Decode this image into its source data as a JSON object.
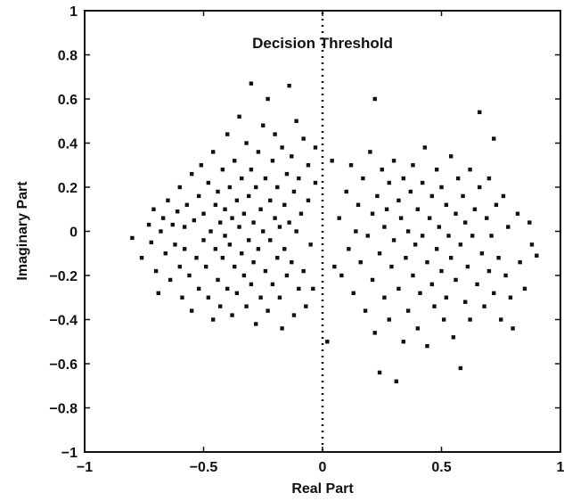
{
  "chart_data": {
    "type": "scatter",
    "xlabel": "Real Part",
    "ylabel": "Imaginary Part",
    "xlim": [
      -1,
      1
    ],
    "ylim": [
      -1,
      1
    ],
    "x_ticks": [
      -1,
      -0.5,
      0,
      0.5,
      1
    ],
    "x_tick_labels": [
      "−1",
      "−0.5",
      "0",
      "0.5",
      "1"
    ],
    "y_ticks": [
      1,
      0.8,
      0.6,
      0.4,
      0.2,
      0,
      -0.2,
      -0.4,
      -0.6,
      -0.8,
      -1
    ],
    "y_tick_labels": [
      "1",
      "0.8",
      "0.6",
      "0.4",
      "0.2",
      "0",
      "−0.2",
      "−0.4",
      "−0.6",
      "−0.8",
      "−1"
    ],
    "grid": false,
    "annotation": {
      "text": "Decision Threshold",
      "x": 0.0,
      "y": 0.83
    },
    "threshold_line": {
      "x": 0
    },
    "marker_color": "#111111",
    "points": [
      [
        -0.8,
        -0.03
      ],
      [
        -0.76,
        -0.12
      ],
      [
        -0.73,
        0.03
      ],
      [
        -0.72,
        -0.05
      ],
      [
        -0.71,
        0.1
      ],
      [
        -0.7,
        -0.18
      ],
      [
        -0.69,
        -0.28
      ],
      [
        -0.68,
        0.0
      ],
      [
        -0.67,
        0.06
      ],
      [
        -0.66,
        -0.1
      ],
      [
        -0.65,
        0.14
      ],
      [
        -0.64,
        -0.22
      ],
      [
        -0.63,
        0.03
      ],
      [
        -0.62,
        -0.06
      ],
      [
        -0.61,
        0.09
      ],
      [
        -0.6,
        -0.16
      ],
      [
        -0.6,
        0.2
      ],
      [
        -0.59,
        -0.3
      ],
      [
        -0.58,
        0.02
      ],
      [
        -0.58,
        -0.08
      ],
      [
        -0.57,
        0.12
      ],
      [
        -0.56,
        -0.2
      ],
      [
        -0.55,
        0.26
      ],
      [
        -0.55,
        -0.36
      ],
      [
        -0.54,
        0.05
      ],
      [
        -0.53,
        -0.12
      ],
      [
        -0.52,
        0.16
      ],
      [
        -0.52,
        -0.26
      ],
      [
        -0.51,
        0.3
      ],
      [
        -0.5,
        -0.04
      ],
      [
        -0.5,
        0.08
      ],
      [
        -0.49,
        -0.16
      ],
      [
        -0.48,
        0.22
      ],
      [
        -0.48,
        -0.3
      ],
      [
        -0.47,
        0.0
      ],
      [
        -0.46,
        0.36
      ],
      [
        -0.46,
        -0.4
      ],
      [
        -0.45,
        0.12
      ],
      [
        -0.45,
        -0.08
      ],
      [
        -0.44,
        0.18
      ],
      [
        -0.44,
        -0.22
      ],
      [
        -0.43,
        0.04
      ],
      [
        -0.43,
        -0.34
      ],
      [
        -0.42,
        0.28
      ],
      [
        -0.42,
        -0.12
      ],
      [
        -0.41,
        0.1
      ],
      [
        -0.41,
        -0.02
      ],
      [
        -0.4,
        0.44
      ],
      [
        -0.4,
        -0.26
      ],
      [
        -0.39,
        0.2
      ],
      [
        -0.39,
        -0.06
      ],
      [
        -0.38,
        0.06
      ],
      [
        -0.38,
        -0.38
      ],
      [
        -0.37,
        0.32
      ],
      [
        -0.37,
        -0.16
      ],
      [
        -0.36,
        0.14
      ],
      [
        -0.36,
        -0.28
      ],
      [
        -0.35,
        0.02
      ],
      [
        -0.35,
        0.52
      ],
      [
        -0.34,
        -0.1
      ],
      [
        -0.34,
        0.24
      ],
      [
        -0.33,
        -0.2
      ],
      [
        -0.33,
        0.08
      ],
      [
        -0.32,
        0.4
      ],
      [
        -0.32,
        -0.34
      ],
      [
        -0.31,
        0.16
      ],
      [
        -0.31,
        -0.04
      ],
      [
        -0.3,
        0.28
      ],
      [
        -0.3,
        -0.24
      ],
      [
        -0.3,
        0.67
      ],
      [
        -0.29,
        0.04
      ],
      [
        -0.29,
        -0.14
      ],
      [
        -0.28,
        0.2
      ],
      [
        -0.28,
        -0.42
      ],
      [
        -0.27,
        0.36
      ],
      [
        -0.27,
        -0.08
      ],
      [
        -0.26,
        0.1
      ],
      [
        -0.26,
        -0.3
      ],
      [
        -0.25,
        0.48
      ],
      [
        -0.25,
        0.0
      ],
      [
        -0.24,
        -0.18
      ],
      [
        -0.24,
        0.24
      ],
      [
        -0.23,
        0.6
      ],
      [
        -0.23,
        -0.36
      ],
      [
        -0.22,
        0.14
      ],
      [
        -0.22,
        -0.04
      ],
      [
        -0.21,
        0.32
      ],
      [
        -0.21,
        -0.24
      ],
      [
        -0.2,
        0.06
      ],
      [
        -0.2,
        0.44
      ],
      [
        -0.19,
        -0.12
      ],
      [
        -0.19,
        0.2
      ],
      [
        -0.18,
        -0.3
      ],
      [
        -0.18,
        0.02
      ],
      [
        -0.17,
        0.38
      ],
      [
        -0.17,
        -0.44
      ],
      [
        -0.16,
        0.12
      ],
      [
        -0.16,
        -0.08
      ],
      [
        -0.15,
        0.26
      ],
      [
        -0.15,
        -0.2
      ],
      [
        -0.14,
        0.66
      ],
      [
        -0.14,
        0.04
      ],
      [
        -0.13,
        0.34
      ],
      [
        -0.13,
        -0.14
      ],
      [
        -0.12,
        0.18
      ],
      [
        -0.12,
        -0.38
      ],
      [
        -0.11,
        0.5
      ],
      [
        -0.11,
        0.0
      ],
      [
        -0.1,
        -0.26
      ],
      [
        -0.1,
        0.24
      ],
      [
        -0.09,
        0.08
      ],
      [
        -0.08,
        0.42
      ],
      [
        -0.08,
        -0.18
      ],
      [
        -0.07,
        -0.34
      ],
      [
        -0.06,
        0.14
      ],
      [
        -0.06,
        0.3
      ],
      [
        -0.05,
        -0.06
      ],
      [
        -0.04,
        -0.26
      ],
      [
        -0.03,
        0.38
      ],
      [
        -0.03,
        0.22
      ],
      [
        0.02,
        -0.5
      ],
      [
        0.04,
        0.32
      ],
      [
        0.05,
        -0.16
      ],
      [
        0.07,
        0.06
      ],
      [
        0.08,
        -0.2
      ],
      [
        0.1,
        0.18
      ],
      [
        0.11,
        -0.08
      ],
      [
        0.12,
        0.3
      ],
      [
        0.13,
        -0.28
      ],
      [
        0.14,
        0.0
      ],
      [
        0.15,
        0.12
      ],
      [
        0.16,
        -0.14
      ],
      [
        0.17,
        0.24
      ],
      [
        0.18,
        -0.36
      ],
      [
        0.19,
        -0.02
      ],
      [
        0.2,
        0.36
      ],
      [
        0.21,
        0.08
      ],
      [
        0.21,
        -0.22
      ],
      [
        0.22,
        0.6
      ],
      [
        0.22,
        -0.46
      ],
      [
        0.23,
        0.16
      ],
      [
        0.24,
        -0.1
      ],
      [
        0.24,
        -0.64
      ],
      [
        0.25,
        0.28
      ],
      [
        0.26,
        0.02
      ],
      [
        0.26,
        -0.3
      ],
      [
        0.27,
        0.1
      ],
      [
        0.28,
        -0.4
      ],
      [
        0.28,
        0.22
      ],
      [
        0.29,
        -0.16
      ],
      [
        0.3,
        0.32
      ],
      [
        0.3,
        -0.04
      ],
      [
        0.31,
        -0.68
      ],
      [
        0.32,
        0.14
      ],
      [
        0.32,
        -0.26
      ],
      [
        0.33,
        0.06
      ],
      [
        0.34,
        -0.5
      ],
      [
        0.34,
        0.24
      ],
      [
        0.35,
        -0.12
      ],
      [
        0.36,
        0.0
      ],
      [
        0.36,
        -0.36
      ],
      [
        0.37,
        0.18
      ],
      [
        0.38,
        -0.2
      ],
      [
        0.38,
        0.3
      ],
      [
        0.39,
        -0.06
      ],
      [
        0.4,
        0.1
      ],
      [
        0.4,
        -0.44
      ],
      [
        0.41,
        -0.28
      ],
      [
        0.42,
        0.22
      ],
      [
        0.42,
        -0.02
      ],
      [
        0.43,
        0.38
      ],
      [
        0.44,
        -0.14
      ],
      [
        0.44,
        -0.52
      ],
      [
        0.45,
        0.06
      ],
      [
        0.46,
        -0.24
      ],
      [
        0.46,
        0.16
      ],
      [
        0.47,
        -0.34
      ],
      [
        0.48,
        0.28
      ],
      [
        0.48,
        -0.08
      ],
      [
        0.49,
        0.02
      ],
      [
        0.5,
        -0.18
      ],
      [
        0.5,
        0.2
      ],
      [
        0.51,
        -0.4
      ],
      [
        0.52,
        0.12
      ],
      [
        0.52,
        -0.3
      ],
      [
        0.53,
        -0.02
      ],
      [
        0.54,
        0.34
      ],
      [
        0.54,
        -0.12
      ],
      [
        0.55,
        -0.48
      ],
      [
        0.56,
        0.08
      ],
      [
        0.56,
        -0.22
      ],
      [
        0.57,
        0.24
      ],
      [
        0.58,
        -0.06
      ],
      [
        0.58,
        -0.62
      ],
      [
        0.59,
        0.16
      ],
      [
        0.6,
        -0.32
      ],
      [
        0.6,
        0.04
      ],
      [
        0.61,
        -0.16
      ],
      [
        0.62,
        0.28
      ],
      [
        0.62,
        -0.4
      ],
      [
        0.63,
        -0.02
      ],
      [
        0.64,
        0.1
      ],
      [
        0.65,
        -0.24
      ],
      [
        0.66,
        0.54
      ],
      [
        0.66,
        0.2
      ],
      [
        0.67,
        -0.1
      ],
      [
        0.68,
        -0.34
      ],
      [
        0.69,
        0.06
      ],
      [
        0.7,
        -0.18
      ],
      [
        0.7,
        0.24
      ],
      [
        0.71,
        -0.02
      ],
      [
        0.72,
        -0.28
      ],
      [
        0.72,
        0.42
      ],
      [
        0.73,
        0.12
      ],
      [
        0.74,
        -0.12
      ],
      [
        0.75,
        -0.4
      ],
      [
        0.76,
        0.16
      ],
      [
        0.77,
        -0.2
      ],
      [
        0.78,
        0.02
      ],
      [
        0.79,
        -0.3
      ],
      [
        0.8,
        -0.44
      ],
      [
        0.82,
        0.08
      ],
      [
        0.83,
        -0.14
      ],
      [
        0.85,
        -0.26
      ],
      [
        0.87,
        0.04
      ],
      [
        0.88,
        -0.06
      ],
      [
        0.9,
        -0.11
      ]
    ]
  }
}
